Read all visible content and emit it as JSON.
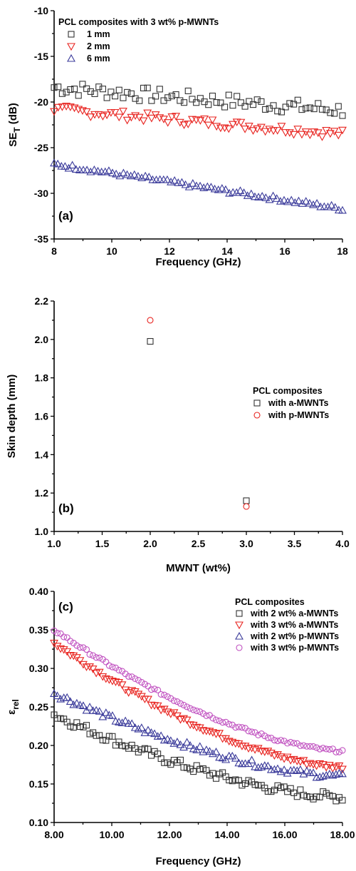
{
  "chart_data": [
    {
      "type": "scatter",
      "panel_label": "(a)",
      "xlabel": "Frequency (GHz)",
      "ylabel": "SE",
      "ylabel_sub": "T",
      "ylabel_unit": " (dB)",
      "xlim": [
        8,
        18
      ],
      "ylim": [
        -35,
        -10
      ],
      "xticks": [
        8,
        10,
        12,
        14,
        16,
        18
      ],
      "yticks": [
        -35,
        -30,
        -25,
        -20,
        -15,
        -10
      ],
      "legend_title": "PCL composites with 3 wt% p-MWNTs",
      "legend_position": "top-left",
      "series": [
        {
          "name": "1 mm",
          "marker": "square",
          "color": "#333333",
          "n": 72,
          "start": -18.4,
          "end": -20.9,
          "noise": 0.8
        },
        {
          "name": "2 mm",
          "marker": "triangle-down",
          "color": "#e8231f",
          "n": 72,
          "start": -20.8,
          "end": -23.5,
          "noise": 0.5
        },
        {
          "name": "6 mm",
          "marker": "triangle-up",
          "color": "#3a3a9a",
          "n": 80,
          "start": -26.8,
          "end": -31.7,
          "noise": 0.25
        }
      ]
    },
    {
      "type": "scatter",
      "panel_label": "(b)",
      "xlabel": "MWNT (wt%)",
      "ylabel": "Skin depth (mm)",
      "xlim": [
        1.0,
        4.0
      ],
      "ylim": [
        1.0,
        2.2
      ],
      "xticks": [
        1.0,
        1.5,
        2.0,
        2.5,
        3.0,
        3.5,
        4.0
      ],
      "yticks": [
        1.0,
        1.2,
        1.4,
        1.6,
        1.8,
        2.0,
        2.2
      ],
      "legend_title": "PCL composites",
      "legend_position": "top-right",
      "series": [
        {
          "name": "with a-MWNTs",
          "marker": "square",
          "color": "#333333",
          "x": [
            2.0,
            3.0
          ],
          "y": [
            1.99,
            1.16
          ]
        },
        {
          "name": "with p-MWNTs",
          "marker": "circle",
          "color": "#e8231f",
          "x": [
            2.0,
            3.0
          ],
          "y": [
            2.1,
            1.13
          ]
        }
      ]
    },
    {
      "type": "scatter",
      "panel_label": "(c)",
      "xlabel": "Frequency (GHz)",
      "ylabel": "ε",
      "ylabel_sub": "rel",
      "xlim": [
        8,
        18
      ],
      "ylim": [
        0.1,
        0.4
      ],
      "xticks": [
        8,
        10,
        12,
        14,
        16,
        18
      ],
      "yticks": [
        0.1,
        0.15,
        0.2,
        0.25,
        0.3,
        0.35,
        0.4
      ],
      "legend_title": "PCL composites",
      "legend_position": "top-right",
      "series": [
        {
          "name": "with 2 wt% a-MWNTs",
          "marker": "square",
          "color": "#333333",
          "n": 90,
          "start": 0.24,
          "end": 0.133,
          "noise": 0.006
        },
        {
          "name": "with 3 wt% a-MWNTs",
          "marker": "triangle-down",
          "color": "#e8231f",
          "n": 90,
          "start": 0.333,
          "end": 0.172,
          "noise": 0.003
        },
        {
          "name": "with 2 wt% p-MWNTs",
          "marker": "triangle-up",
          "color": "#3a3a9a",
          "n": 90,
          "start": 0.268,
          "end": 0.16,
          "noise": 0.004
        },
        {
          "name": "with 3 wt% p-MWNTs",
          "marker": "circle",
          "color": "#c050c0",
          "n": 90,
          "start": 0.35,
          "end": 0.193,
          "noise": 0.002
        }
      ]
    }
  ]
}
